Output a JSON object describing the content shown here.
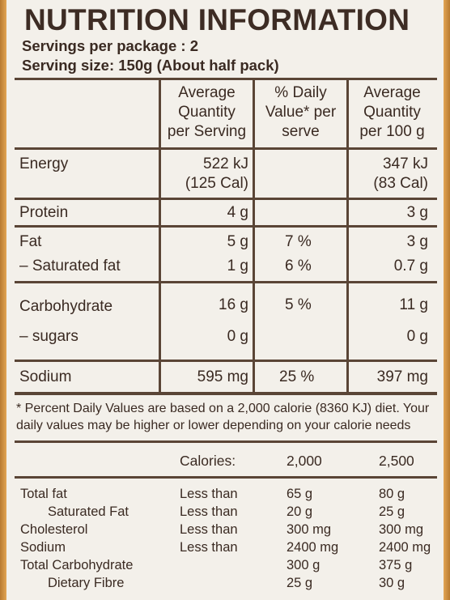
{
  "title": "NUTRITION INFORMATION",
  "servings_line": "Servings per package : 2",
  "serving_size_line": "Serving size: 150g (About half pack)",
  "headers": {
    "avg_serving": [
      "Average",
      "Quantity",
      "per Serving"
    ],
    "daily_value": [
      "% Daily",
      "Value* per",
      "serve"
    ],
    "avg_100g": [
      "Average",
      "Quantity",
      "per 100 g"
    ]
  },
  "rows": {
    "energy": {
      "label": "Energy",
      "serving": "522 kJ",
      "serving_cal": "(125 Cal)",
      "per100": "347 kJ",
      "per100_cal": "(83 Cal)"
    },
    "protein": {
      "label": "Protein",
      "serving": "4 g",
      "per100": "3 g"
    },
    "fat": {
      "label": "Fat",
      "serving": "5 g",
      "dv": "7 %",
      "per100": "3 g"
    },
    "sat_fat": {
      "label": "– Saturated fat",
      "serving": "1 g",
      "dv": "6 %",
      "per100": "0.7 g"
    },
    "carb": {
      "label": "Carbohydrate",
      "serving": "16 g",
      "dv": "5 %",
      "per100": "11 g"
    },
    "sugars": {
      "label": "– sugars",
      "serving": "0 g",
      "per100": "0 g"
    },
    "sodium": {
      "label": "Sodium",
      "serving": "595 mg",
      "dv": "25 %",
      "per100": "397 mg"
    }
  },
  "footnote": "* Percent Daily Values are based on a 2,000 calorie (8360 KJ) diet. Your daily values may be higher or lower depending on your calorie needs",
  "reference": {
    "calories_label": "Calories:",
    "col1": "2,000",
    "col2": "2,500",
    "rows": [
      {
        "label": "Total fat",
        "cond": "Less than",
        "v1": "65 g",
        "v2": "80 g"
      },
      {
        "label": "Saturated Fat",
        "cond": "Less than",
        "v1": "20 g",
        "v2": "25 g"
      },
      {
        "label": "Cholesterol",
        "cond": "Less than",
        "v1": "300 mg",
        "v2": "300 mg"
      },
      {
        "label": "Sodium",
        "cond": "Less than",
        "v1": "2400 mg",
        "v2": "2400 mg"
      },
      {
        "label": "Total Carbohydrate",
        "cond": "",
        "v1": "300 g",
        "v2": "375 g"
      },
      {
        "label": "Dietary Fibre",
        "cond": "",
        "v1": "25 g",
        "v2": "30 g"
      }
    ]
  }
}
